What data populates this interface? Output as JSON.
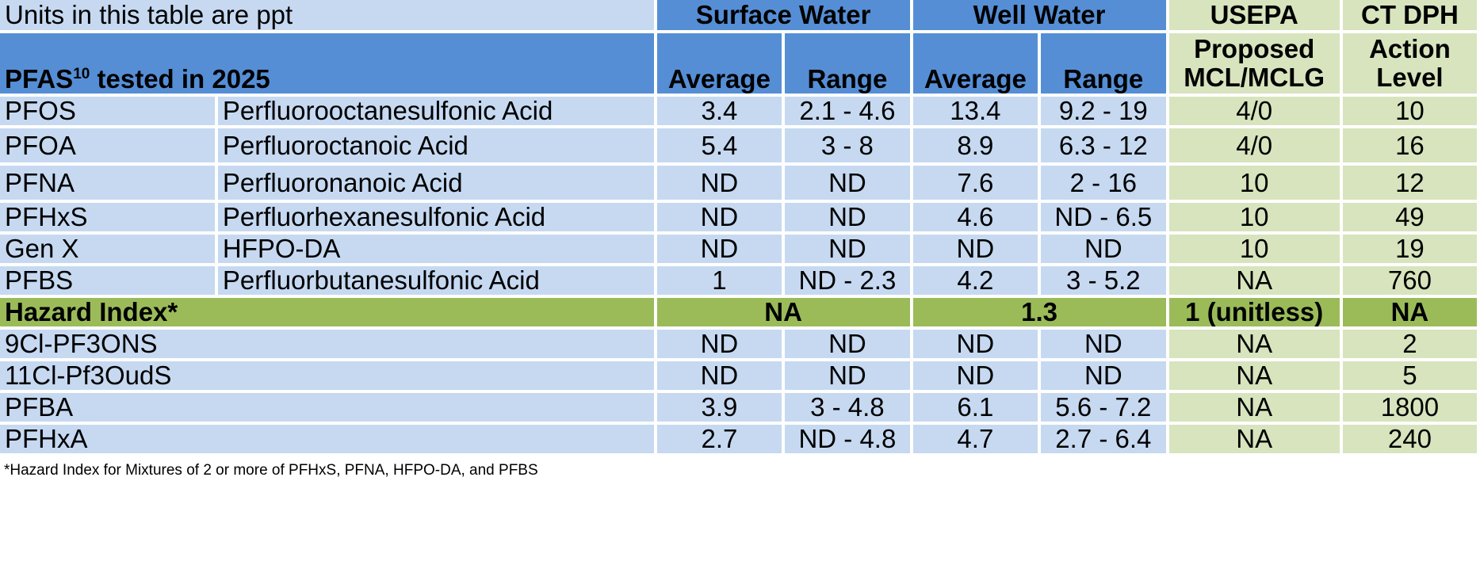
{
  "header": {
    "units_note": "Units in this table are ppt",
    "surface_water": "Surface Water",
    "well_water": "Well Water",
    "usepa": "USEPA",
    "ctdph": "CT DPH",
    "pfas_label": "PFAS",
    "pfas_sup": "10",
    "pfas_suffix": " tested in 2025",
    "average": "Average",
    "range": "Range",
    "proposed": "Proposed",
    "mcl_mclg": "MCL/MCLG",
    "action": "Action",
    "level": "Level"
  },
  "rows_a": [
    {
      "code": "PFOS",
      "name": "Perfluorooctanesulfonic Acid",
      "sw_avg": "3.4",
      "sw_range": "2.1 - 4.6",
      "ww_avg": "13.4",
      "ww_range": "9.2 - 19",
      "usepa": "4/0",
      "ctdph": "10"
    },
    {
      "code": "PFOA",
      "name": "Perfluoroctanoic Acid",
      "sw_avg": "5.4",
      "sw_range": "3 - 8",
      "ww_avg": "8.9",
      "ww_range": "6.3 - 12",
      "usepa": "4/0",
      "ctdph": "16"
    },
    {
      "code": "PFNA",
      "name": "Perfluoronanoic Acid",
      "sw_avg": "ND",
      "sw_range": "ND",
      "ww_avg": "7.6",
      "ww_range": "2 - 16",
      "usepa": "10",
      "ctdph": "12"
    },
    {
      "code": "PFHxS",
      "name": "Perfluorhexanesulfonic Acid",
      "sw_avg": "ND",
      "sw_range": "ND",
      "ww_avg": "4.6",
      "ww_range": "ND - 6.5",
      "usepa": "10",
      "ctdph": "49"
    },
    {
      "code": "Gen X",
      "name": "HFPO-DA",
      "sw_avg": "ND",
      "sw_range": "ND",
      "ww_avg": "ND",
      "ww_range": "ND",
      "usepa": "10",
      "ctdph": "19"
    },
    {
      "code": "PFBS",
      "name": "Perfluorbutanesulfonic Acid",
      "sw_avg": "1",
      "sw_range": "ND - 2.3",
      "ww_avg": "4.2",
      "ww_range": "3 - 5.2",
      "usepa": "NA",
      "ctdph": "760"
    }
  ],
  "hazard": {
    "label": "Hazard Index*",
    "surface": "NA",
    "well": "1.3",
    "usepa": "1 (unitless)",
    "ctdph": "NA"
  },
  "rows_b": [
    {
      "code": "9Cl-PF3ONS",
      "sw_avg": "ND",
      "sw_range": "ND",
      "ww_avg": "ND",
      "ww_range": "ND",
      "usepa": "NA",
      "ctdph": "2"
    },
    {
      "code": "11Cl-Pf3OudS",
      "sw_avg": "ND",
      "sw_range": "ND",
      "ww_avg": "ND",
      "ww_range": "ND",
      "usepa": "NA",
      "ctdph": "5"
    },
    {
      "code": "PFBA",
      "sw_avg": "3.9",
      "sw_range": "3 - 4.8",
      "ww_avg": "6.1",
      "ww_range": "5.6 - 7.2",
      "usepa": "NA",
      "ctdph": "1800"
    },
    {
      "code": "PFHxA",
      "sw_avg": "2.7",
      "sw_range": "ND - 4.8",
      "ww_avg": "4.7",
      "ww_range": "2.7 - 6.4",
      "usepa": "NA",
      "ctdph": "240"
    }
  ],
  "footnote": "*Hazard Index for Mixtures of 2 or more of PFHxS, PFNA, HFPO-DA, and PFBS"
}
